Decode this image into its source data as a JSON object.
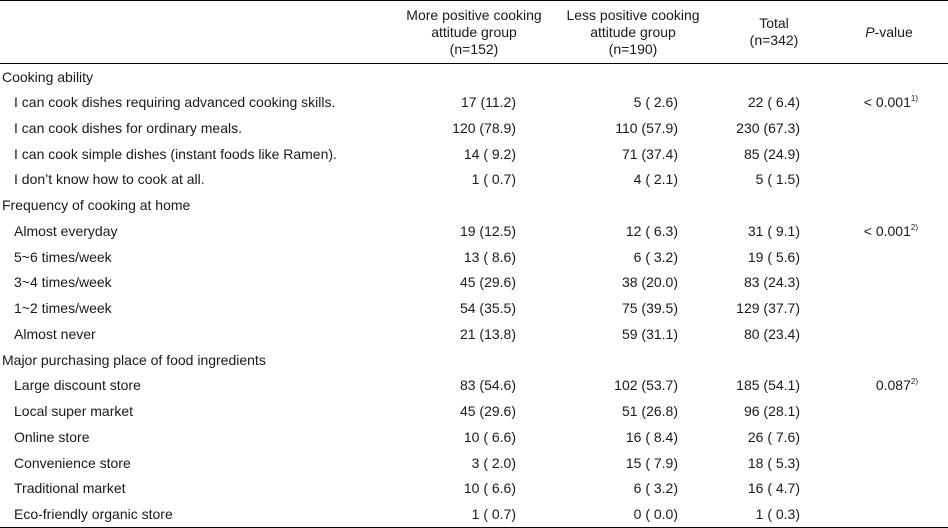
{
  "header": {
    "col1": [
      "More positive cooking",
      "attitude group",
      "(n=152)"
    ],
    "col2": [
      "Less positive cooking",
      "attitude group",
      "(n=190)"
    ],
    "col3": [
      "Total",
      "(n=342)"
    ],
    "col4_italic": "P",
    "col4_rest": "-value"
  },
  "sections": [
    {
      "title": "Cooking ability",
      "rows": [
        {
          "label": "I can cook dishes requiring advanced cooking skills.",
          "a": "17 (11.2)",
          "b": "5 ( 2.6)",
          "t": "22 ( 6.4)",
          "p": "< 0.001",
          "sup": "1)"
        },
        {
          "label": "I can cook dishes for ordinary meals.",
          "a": "120 (78.9)",
          "b": "110 (57.9)",
          "t": "230 (67.3)",
          "p": "",
          "sup": ""
        },
        {
          "label": "I can cook simple dishes (instant foods like Ramen).",
          "a": "14 ( 9.2)",
          "b": "71 (37.4)",
          "t": "85 (24.9)",
          "p": "",
          "sup": ""
        },
        {
          "label": "I don’t know how to cook at all.",
          "a": "1 ( 0.7)",
          "b": "4 ( 2.1)",
          "t": "5 ( 1.5)",
          "p": "",
          "sup": ""
        }
      ]
    },
    {
      "title": "Frequency of cooking at home",
      "rows": [
        {
          "label": "Almost everyday",
          "a": "19 (12.5)",
          "b": "12 ( 6.3)",
          "t": "31 ( 9.1)",
          "p": "< 0.001",
          "sup": "2)"
        },
        {
          "label": "5~6 times/week",
          "a": "13 ( 8.6)",
          "b": "6 ( 3.2)",
          "t": "19 ( 5.6)",
          "p": "",
          "sup": ""
        },
        {
          "label": "3~4 times/week",
          "a": "45 (29.6)",
          "b": "38 (20.0)",
          "t": "83 (24.3)",
          "p": "",
          "sup": ""
        },
        {
          "label": "1~2 times/week",
          "a": "54 (35.5)",
          "b": "75 (39.5)",
          "t": "129 (37.7)",
          "p": "",
          "sup": ""
        },
        {
          "label": "Almost never",
          "a": "21 (13.8)",
          "b": "59 (31.1)",
          "t": "80 (23.4)",
          "p": "",
          "sup": ""
        }
      ]
    },
    {
      "title": "Major purchasing place of food ingredients",
      "rows": [
        {
          "label": "Large discount store",
          "a": "83 (54.6)",
          "b": "102 (53.7)",
          "t": "185 (54.1)",
          "p": "0.087",
          "sup": "2)"
        },
        {
          "label": "Local super market",
          "a": "45 (29.6)",
          "b": "51 (26.8)",
          "t": "96 (28.1)",
          "p": "",
          "sup": ""
        },
        {
          "label": "Online store",
          "a": "10 ( 6.6)",
          "b": "16 ( 8.4)",
          "t": "26 ( 7.6)",
          "p": "",
          "sup": ""
        },
        {
          "label": "Convenience store",
          "a": "3 ( 2.0)",
          "b": "15 ( 7.9)",
          "t": "18 ( 5.3)",
          "p": "",
          "sup": ""
        },
        {
          "label": "Traditional market",
          "a": "10 ( 6.6)",
          "b": "6 ( 3.2)",
          "t": "16 ( 4.7)",
          "p": "",
          "sup": ""
        },
        {
          "label": "Eco-friendly organic store",
          "a": "1 ( 0.7)",
          "b": "0 ( 0.0)",
          "t": "1 ( 0.3)",
          "p": "",
          "sup": ""
        }
      ]
    }
  ]
}
